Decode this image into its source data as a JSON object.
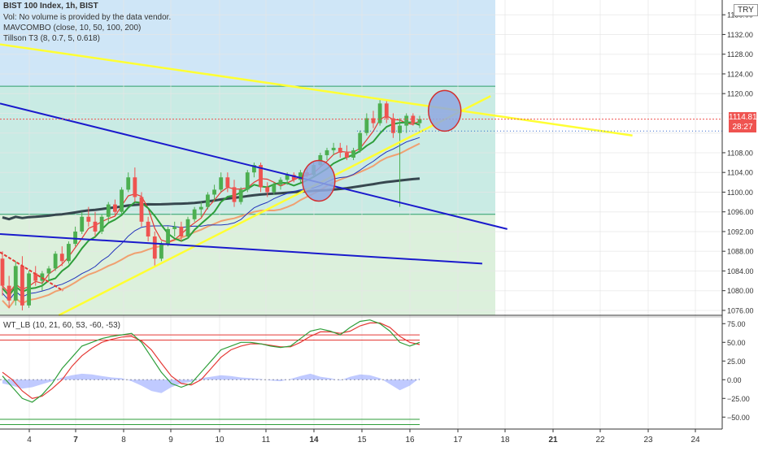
{
  "legend": {
    "symbol": "BIST 100 Index, 1h, BIST",
    "vol_note": "Vol: No volume is provided by the data vendor.",
    "mav": "MAVCOMBO (close, 10, 50, 100, 200)",
    "tillson": "Tillson T3 (8, 0.7, 5, 0.618)",
    "oscillator": "WT_LB (10, 21, 60, 53, -60, -53)"
  },
  "currency_badge": "TRY",
  "price_badge": "1114.81",
  "countdown_badge": "28:27",
  "colors": {
    "up": "#4caf50",
    "down": "#ef5350",
    "trend_yellow": "#ffff33",
    "trend_blue": "#1a1acc",
    "ma_dark": "#37474f",
    "ma_orange": "#f0a070",
    "ma_blue": "#2233bb",
    "ma_green": "#2e9e3a",
    "ma_red": "#e53935",
    "zone_blue": "#cfe6f7",
    "zone_teal": "#c9ebe4",
    "zone_green": "#dcf0dc",
    "highlight_circle": "#8fa8e0"
  },
  "chart_data": [
    {
      "type": "candlestick",
      "title": "BIST 100 Index, 1h, BIST",
      "ylim": [
        1075,
        1139
      ],
      "y_ticks": [
        1076,
        1080,
        1084,
        1088,
        1092,
        1096,
        1100,
        1104,
        1108,
        1112,
        1116,
        1120,
        1124,
        1128,
        1132,
        1136
      ],
      "x_ticks": [
        "4",
        "7",
        "8",
        "9",
        "10",
        "11",
        "14",
        "15",
        "16",
        "17",
        "18",
        "21",
        "22",
        "23",
        "24"
      ],
      "last_price": 1114.81,
      "candles_ohlc": [
        [
          1086.5,
          1088.0,
          1079.0,
          1081.0
        ],
        [
          1081.0,
          1083.0,
          1076.5,
          1078.0
        ],
        [
          1078.0,
          1086.0,
          1077.0,
          1085.0
        ],
        [
          1085.0,
          1087.0,
          1076.0,
          1077.0
        ],
        [
          1077.0,
          1084.0,
          1076.5,
          1083.5
        ],
        [
          1083.5,
          1085.0,
          1081.0,
          1082.0
        ],
        [
          1082.0,
          1084.0,
          1080.0,
          1083.5
        ],
        [
          1083.5,
          1085.0,
          1082.0,
          1084.5
        ],
        [
          1084.5,
          1088.0,
          1084.0,
          1087.5
        ],
        [
          1087.5,
          1089.0,
          1085.0,
          1086.0
        ],
        [
          1086.0,
          1090.0,
          1085.5,
          1089.5
        ],
        [
          1089.5,
          1093.0,
          1089.0,
          1092.0
        ],
        [
          1092.0,
          1096.0,
          1091.5,
          1095.0
        ],
        [
          1095.0,
          1097.0,
          1093.0,
          1094.0
        ],
        [
          1094.0,
          1096.0,
          1091.0,
          1092.0
        ],
        [
          1092.0,
          1095.5,
          1091.5,
          1095.0
        ],
        [
          1095.0,
          1098.0,
          1094.0,
          1097.5
        ],
        [
          1097.5,
          1098.5,
          1095.0,
          1096.0
        ],
        [
          1096.0,
          1101.0,
          1095.5,
          1100.5
        ],
        [
          1100.5,
          1104.0,
          1100.0,
          1103.0
        ],
        [
          1103.0,
          1105.0,
          1098.0,
          1099.0
        ],
        [
          1099.0,
          1100.0,
          1093.0,
          1094.0
        ],
        [
          1094.0,
          1095.0,
          1090.0,
          1091.0
        ],
        [
          1091.0,
          1092.0,
          1085.0,
          1086.5
        ],
        [
          1086.5,
          1090.0,
          1086.0,
          1089.5
        ],
        [
          1089.5,
          1093.0,
          1089.0,
          1092.5
        ],
        [
          1092.5,
          1094.0,
          1091.0,
          1093.0
        ],
        [
          1093.0,
          1094.0,
          1090.0,
          1091.0
        ],
        [
          1091.0,
          1095.0,
          1090.5,
          1094.5
        ],
        [
          1094.5,
          1097.0,
          1094.0,
          1096.5
        ],
        [
          1096.5,
          1098.0,
          1095.0,
          1097.0
        ],
        [
          1097.0,
          1100.0,
          1096.5,
          1099.5
        ],
        [
          1099.5,
          1101.5,
          1098.0,
          1100.5
        ],
        [
          1100.5,
          1104.0,
          1100.0,
          1103.0
        ],
        [
          1103.0,
          1104.0,
          1100.0,
          1101.0
        ],
        [
          1101.0,
          1102.5,
          1097.0,
          1098.0
        ],
        [
          1098.0,
          1101.0,
          1097.5,
          1100.5
        ],
        [
          1100.5,
          1104.5,
          1100.0,
          1104.0
        ],
        [
          1104.0,
          1106.0,
          1103.0,
          1105.5
        ],
        [
          1105.5,
          1106.0,
          1100.0,
          1101.0
        ],
        [
          1101.0,
          1102.0,
          1099.0,
          1100.0
        ],
        [
          1100.0,
          1102.0,
          1099.5,
          1101.5
        ],
        [
          1101.5,
          1103.0,
          1100.5,
          1102.5
        ],
        [
          1102.5,
          1104.0,
          1101.5,
          1103.5
        ],
        [
          1103.5,
          1104.0,
          1102.0,
          1102.5
        ],
        [
          1102.5,
          1104.5,
          1102.0,
          1104.0
        ],
        [
          1104.0,
          1105.0,
          1103.0,
          1103.5
        ],
        [
          1103.5,
          1106.0,
          1103.0,
          1105.5
        ],
        [
          1105.5,
          1108.0,
          1105.0,
          1107.5
        ],
        [
          1107.5,
          1109.0,
          1106.5,
          1108.5
        ],
        [
          1108.5,
          1110.0,
          1107.5,
          1109.0
        ],
        [
          1109.0,
          1110.0,
          1107.0,
          1108.0
        ],
        [
          1108.0,
          1109.5,
          1106.5,
          1107.0
        ],
        [
          1107.0,
          1109.0,
          1106.5,
          1108.5
        ],
        [
          1108.5,
          1112.5,
          1108.0,
          1112.0
        ],
        [
          1112.0,
          1116.0,
          1111.5,
          1115.0
        ],
        [
          1115.0,
          1116.5,
          1113.0,
          1114.0
        ],
        [
          1114.0,
          1119.0,
          1113.5,
          1118.0
        ],
        [
          1118.0,
          1118.5,
          1114.0,
          1115.0
        ],
        [
          1115.0,
          1116.0,
          1111.0,
          1112.0
        ],
        [
          1112.0,
          1115.0,
          1097.0,
          1113.5
        ],
        [
          1113.5,
          1116.0,
          1112.0,
          1115.5
        ],
        [
          1115.5,
          1116.0,
          1113.5,
          1114.0
        ],
        [
          1114.0,
          1115.5,
          1113.0,
          1114.81
        ]
      ],
      "annotations": [
        {
          "kind": "price-range-zone",
          "top": 1139,
          "bottom": 1075
        },
        {
          "kind": "horizontal-level",
          "value": 1121.5
        },
        {
          "kind": "horizontal-level",
          "value": 1095.5
        }
      ]
    },
    {
      "type": "line",
      "title": "WT_LB (10, 21, 60, 53, -60, -53)",
      "ylim": [
        -66,
        84
      ],
      "y_ticks": [
        75,
        50,
        25,
        0,
        -25,
        -50
      ],
      "levels": [
        60,
        53,
        -60,
        -53
      ],
      "wt1": [
        5,
        -10,
        -25,
        -30,
        -20,
        -5,
        15,
        30,
        45,
        50,
        55,
        58,
        60,
        62,
        50,
        30,
        10,
        -5,
        -10,
        -5,
        10,
        25,
        40,
        45,
        50,
        50,
        48,
        45,
        43,
        45,
        55,
        65,
        68,
        65,
        60,
        70,
        78,
        80,
        75,
        65,
        50,
        45,
        50
      ],
      "wt2": [
        10,
        0,
        -15,
        -25,
        -22,
        -12,
        0,
        18,
        32,
        42,
        50,
        54,
        57,
        58,
        52,
        40,
        22,
        5,
        -5,
        -7,
        0,
        15,
        30,
        40,
        45,
        48,
        48,
        46,
        44,
        44,
        50,
        58,
        64,
        64,
        62,
        65,
        72,
        76,
        76,
        70,
        58,
        50,
        47
      ],
      "histogram": [
        -5,
        -8,
        -12,
        -10,
        -6,
        -2,
        3,
        6,
        8,
        7,
        5,
        3,
        2,
        -2,
        -8,
        -15,
        -18,
        -10,
        -5,
        -3,
        2,
        4,
        6,
        5,
        3,
        2,
        1,
        -1,
        -2,
        1,
        5,
        8,
        4,
        2,
        -1,
        4,
        7,
        6,
        2,
        -6,
        -14,
        -8,
        2
      ]
    }
  ]
}
